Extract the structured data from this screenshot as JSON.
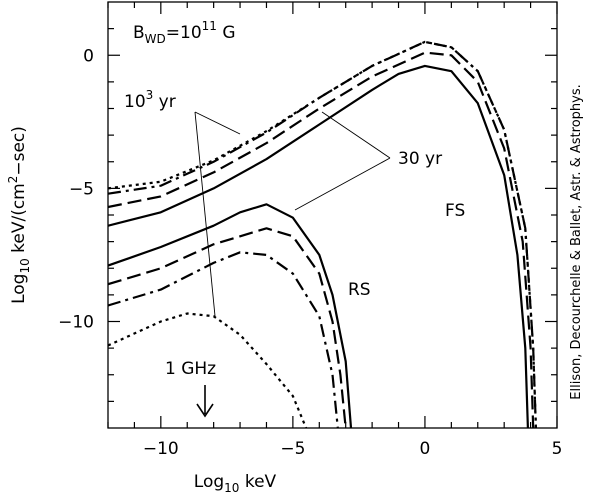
{
  "chart_data": {
    "type": "line",
    "xlabel": [
      "Log",
      "10",
      " keV"
    ],
    "ylabel": [
      "Log",
      "10",
      " keV/(cm",
      "2",
      "−sec)"
    ],
    "credit": "Ellison, Decourchelle & Ballet, Astr. & Astrophys.",
    "annotations": {
      "field": [
        "B",
        "WD",
        "=10",
        "11",
        "  G"
      ],
      "age_old": [
        "10",
        "3",
        " yr"
      ],
      "age_young": "30 yr",
      "fs": "FS",
      "rs": "RS",
      "radio": "1 GHz"
    },
    "xlim": [
      -12,
      5
    ],
    "ylim": [
      -14,
      2
    ],
    "xticks": [
      {
        "value": -10,
        "label": "−10"
      },
      {
        "value": -5,
        "label": "−5"
      },
      0,
      5
    ],
    "yticks": [
      0,
      {
        "value": -5,
        "label": "−5"
      },
      {
        "value": -10,
        "label": "−10"
      }
    ],
    "xminor": [
      -12,
      -11,
      -9,
      -8,
      -7,
      -6,
      -4,
      -3,
      -2,
      -1,
      1,
      2,
      3,
      4
    ],
    "yminor": [
      1,
      -1,
      -2,
      -3,
      -4,
      -6,
      -7,
      -8,
      -9,
      -11,
      -12,
      -13
    ],
    "series": [
      {
        "color": "#000",
        "dash": "solid",
        "x": [
          -12,
          -10,
          -8,
          -6,
          -4,
          -2,
          -1,
          0,
          1,
          2,
          3,
          3.5,
          3.8,
          3.9
        ],
        "values": [
          -6.4,
          -5.9,
          -5.0,
          -3.9,
          -2.6,
          -1.3,
          -0.7,
          -0.4,
          -0.6,
          -1.8,
          -4.5,
          -7.5,
          -11,
          -14
        ]
      },
      {
        "color": "#000",
        "dash": "dashed",
        "x": [
          -12,
          -10,
          -8,
          -6,
          -4,
          -2,
          0,
          1,
          2,
          3,
          3.7,
          4.0,
          4.1
        ],
        "values": [
          -5.7,
          -5.3,
          -4.4,
          -3.3,
          -2.0,
          -0.8,
          0.1,
          0,
          -1.0,
          -3.5,
          -7,
          -11,
          -14
        ]
      },
      {
        "color": "#000",
        "dash": "dashdot",
        "x": [
          -12,
          -10,
          -8,
          -6,
          -4,
          -2,
          0,
          1,
          2,
          3,
          3.8,
          4.1,
          4.2
        ],
        "values": [
          -5.2,
          -4.9,
          -4.0,
          -2.9,
          -1.6,
          -0.4,
          0.5,
          0.3,
          -0.6,
          -2.8,
          -6.5,
          -11,
          -14
        ]
      },
      {
        "color": "#000",
        "dash": "dotted",
        "x": [
          -12,
          -10,
          -8,
          -6,
          -4,
          -2,
          0,
          1,
          2,
          3,
          3.8,
          4.1,
          4.2
        ],
        "values": [
          -5.0,
          -4.75,
          -3.95,
          -2.85,
          -1.6,
          -0.4,
          0.5,
          0.3,
          -0.6,
          -2.8,
          -6.5,
          -11,
          -14
        ]
      },
      {
        "color": "#000",
        "dash": "solid",
        "x": [
          -12,
          -10,
          -8,
          -7,
          -6,
          -5,
          -4,
          -3.5,
          -3,
          -2.8
        ],
        "values": [
          -7.9,
          -7.2,
          -6.4,
          -5.9,
          -5.6,
          -6.1,
          -7.5,
          -9,
          -11.5,
          -14
        ]
      },
      {
        "color": "#000",
        "dash": "dashed",
        "x": [
          -12,
          -10,
          -8,
          -6,
          -5,
          -4,
          -3.5,
          -3.2,
          -3
        ],
        "values": [
          -8.6,
          -8.0,
          -7.1,
          -6.5,
          -6.8,
          -8.2,
          -10,
          -12,
          -14
        ]
      },
      {
        "color": "#000",
        "dash": "dashdot",
        "x": [
          -12,
          -10,
          -8,
          -7,
          -6,
          -5,
          -4,
          -3.5,
          -3.3
        ],
        "values": [
          -9.4,
          -8.8,
          -7.8,
          -7.4,
          -7.5,
          -8.2,
          -9.8,
          -12,
          -14
        ]
      },
      {
        "color": "#000",
        "dash": "dotted",
        "x": [
          -12,
          -10,
          -9,
          -8,
          -7,
          -6,
          -5,
          -4.5
        ],
        "values": [
          -10.9,
          -10.0,
          -9.7,
          -9.8,
          -10.5,
          -11.6,
          -12.8,
          -14
        ]
      }
    ]
  }
}
